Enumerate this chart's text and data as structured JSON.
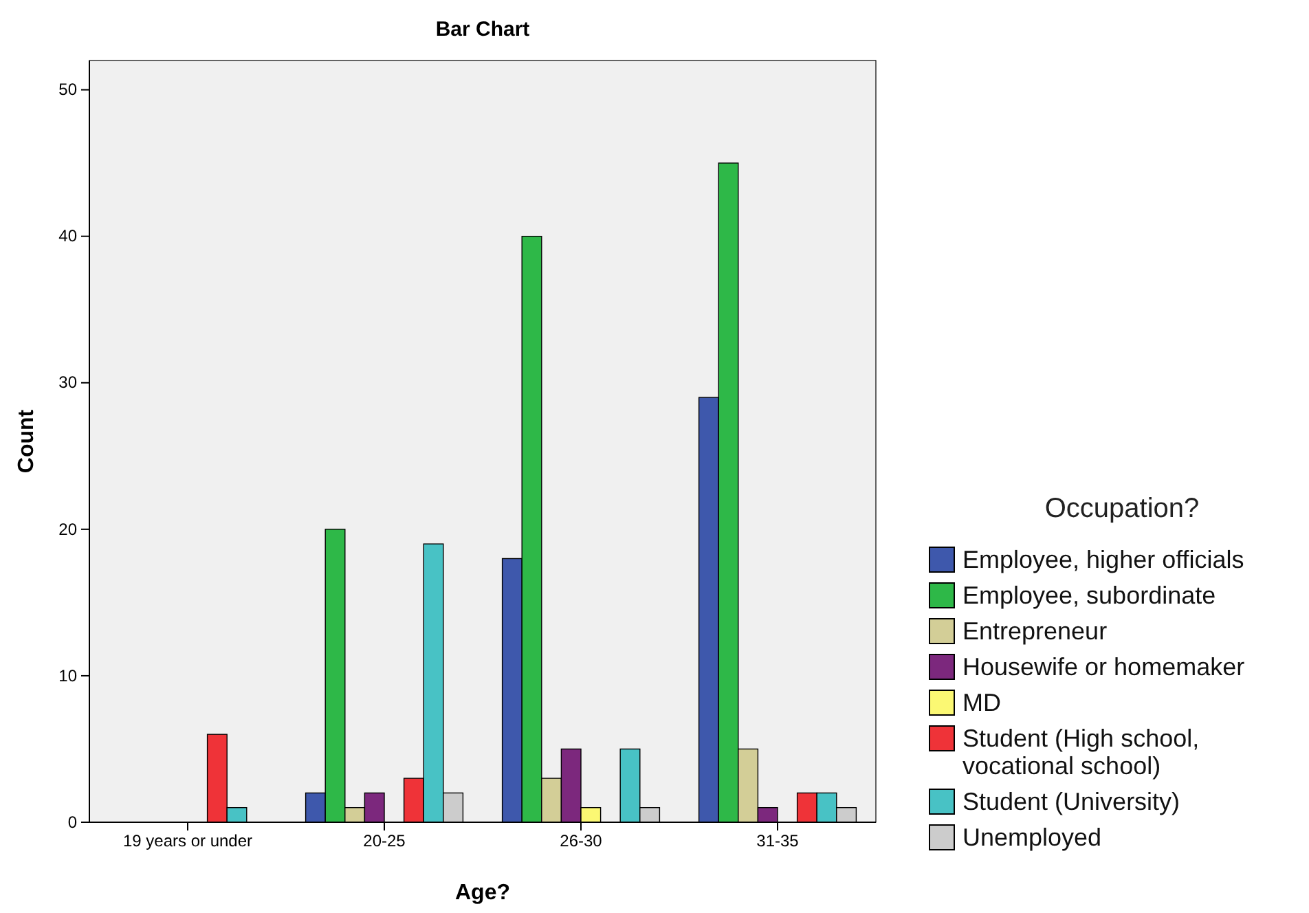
{
  "chart_data": {
    "type": "bar",
    "title": "Bar Chart",
    "xlabel": "Age?",
    "ylabel": "Count",
    "legend_title": "Occupation?",
    "legend": "right",
    "categories": [
      "19 years or under",
      "20-25",
      "26-30",
      "31-35"
    ],
    "ylim": [
      0,
      52
    ],
    "yticks": [
      0,
      10,
      20,
      30,
      40,
      50
    ],
    "series": [
      {
        "name": "Employee, higher officials",
        "color": "#3e58ac",
        "values": [
          null,
          2,
          18,
          29
        ]
      },
      {
        "name": "Employee, subordinate",
        "color": "#2eb848",
        "values": [
          null,
          20,
          40,
          45
        ]
      },
      {
        "name": "Entrepreneur",
        "color": "#d3ce97",
        "values": [
          null,
          1,
          3,
          5
        ]
      },
      {
        "name": "Housewife or homemaker",
        "color": "#7c287d",
        "values": [
          null,
          2,
          5,
          1
        ]
      },
      {
        "name": "MD",
        "color": "#fbf873",
        "values": [
          null,
          null,
          1,
          null
        ]
      },
      {
        "name": "Student (High school, vocational school)",
        "color": "#ef3338",
        "values": [
          6,
          3,
          null,
          2
        ]
      },
      {
        "name": "Student (University)",
        "color": "#48c2c5",
        "values": [
          1,
          19,
          5,
          2
        ]
      },
      {
        "name": "Unemployed",
        "color": "#cccccc",
        "values": [
          null,
          2,
          1,
          1
        ]
      }
    ]
  }
}
